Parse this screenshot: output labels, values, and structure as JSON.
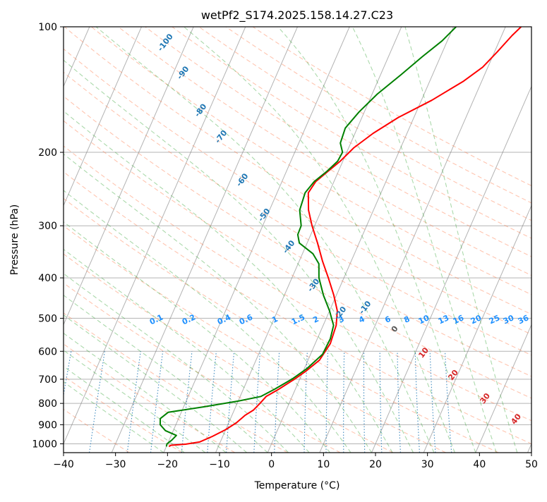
{
  "chart_data": {
    "type": "line",
    "title": "wetPf2_S174.2025.158.14.27.C23",
    "xlabel": "Temperature (°C)",
    "ylabel": "Pressure (hPa)",
    "xlim": [
      -40,
      50
    ],
    "ylim": [
      1050,
      100
    ],
    "y_scale": "log",
    "grid": true,
    "x_ticks": [
      -40,
      -30,
      -20,
      -10,
      0,
      10,
      20,
      30,
      40,
      50
    ],
    "y_ticks": [
      1000,
      900,
      800,
      700,
      600,
      500,
      400,
      300,
      200,
      100
    ],
    "series": [
      {
        "color": "#ff0000",
        "values": [
          [
            -19.5,
            1015
          ],
          [
            -19.2,
            1008
          ],
          [
            -16.5,
            1002
          ],
          [
            -14.0,
            990
          ],
          [
            -12.0,
            960
          ],
          [
            -10.0,
            925
          ],
          [
            -8.5,
            890
          ],
          [
            -7.5,
            855
          ],
          [
            -6.3,
            830
          ],
          [
            -5.6,
            800
          ],
          [
            -5.0,
            770
          ],
          [
            -3.2,
            740
          ],
          [
            -1.0,
            700
          ],
          [
            0.5,
            670
          ],
          [
            2.2,
            630
          ],
          [
            2.9,
            575
          ],
          [
            2.5,
            520
          ],
          [
            1.5,
            480
          ],
          [
            -0.5,
            440
          ],
          [
            -3.0,
            400
          ],
          [
            -5.5,
            365
          ],
          [
            -8.0,
            330
          ],
          [
            -10.5,
            300
          ],
          [
            -12.5,
            275
          ],
          [
            -14.0,
            250
          ],
          [
            -13.5,
            235
          ],
          [
            -12.0,
            222
          ],
          [
            -10.5,
            210
          ],
          [
            -9.0,
            195
          ],
          [
            -6.5,
            180
          ],
          [
            -3.0,
            165
          ],
          [
            2.0,
            150
          ],
          [
            6.5,
            135
          ],
          [
            9.0,
            125
          ],
          [
            10.5,
            115
          ],
          [
            12.0,
            105
          ],
          [
            13.0,
            100
          ]
        ]
      },
      {
        "color": "#008000",
        "values": [
          [
            -20.0,
            1015
          ],
          [
            -20.1,
            1000
          ],
          [
            -19.5,
            980
          ],
          [
            -19.0,
            955
          ],
          [
            -21.5,
            930
          ],
          [
            -23.0,
            900
          ],
          [
            -23.5,
            870
          ],
          [
            -22.5,
            840
          ],
          [
            -16.0,
            815
          ],
          [
            -10.0,
            790
          ],
          [
            -6.0,
            770
          ],
          [
            -4.0,
            740
          ],
          [
            -1.5,
            700
          ],
          [
            0.5,
            660
          ],
          [
            2.3,
            610
          ],
          [
            2.5,
            560
          ],
          [
            2.0,
            520
          ],
          [
            0.0,
            480
          ],
          [
            -2.5,
            440
          ],
          [
            -4.8,
            400
          ],
          [
            -6.0,
            370
          ],
          [
            -8.0,
            350
          ],
          [
            -11.5,
            330
          ],
          [
            -12.5,
            315
          ],
          [
            -12.6,
            300
          ],
          [
            -14.2,
            275
          ],
          [
            -14.6,
            250
          ],
          [
            -13.8,
            235
          ],
          [
            -12.2,
            222
          ],
          [
            -11.0,
            210
          ],
          [
            -10.8,
            200
          ],
          [
            -12.0,
            190
          ],
          [
            -12.3,
            175
          ],
          [
            -11.0,
            160
          ],
          [
            -9.0,
            145
          ],
          [
            -6.0,
            130
          ],
          [
            -3.5,
            118
          ],
          [
            -1.0,
            108
          ],
          [
            0.5,
            100
          ]
        ]
      }
    ],
    "dry_adiabat_labels": [
      "-100",
      "-90",
      "-80",
      "-70",
      "-60",
      "-50",
      "-40",
      "-30",
      "-20",
      "-10",
      "0",
      "10",
      "20",
      "30",
      "40"
    ],
    "mixing_ratio_labels": [
      "0.1",
      "0.2",
      "0.4",
      "0.6",
      "1",
      "1.5",
      "2",
      "3",
      "4",
      "6",
      "8",
      "10",
      "13",
      "16",
      "20",
      "25",
      "30",
      "36"
    ],
    "colors": {
      "isotherm": "#808080",
      "dry_adiabat": "#ff7f50",
      "moist_adiabat": "#2ca02c",
      "mixing_ratio": "#1f77b4",
      "ccl_curve": "#d2b48c",
      "label_blue": "#1f77b4",
      "label_red": "#d62728",
      "label_gray": "#555555",
      "label_light_blue": "#1e90ff"
    }
  }
}
